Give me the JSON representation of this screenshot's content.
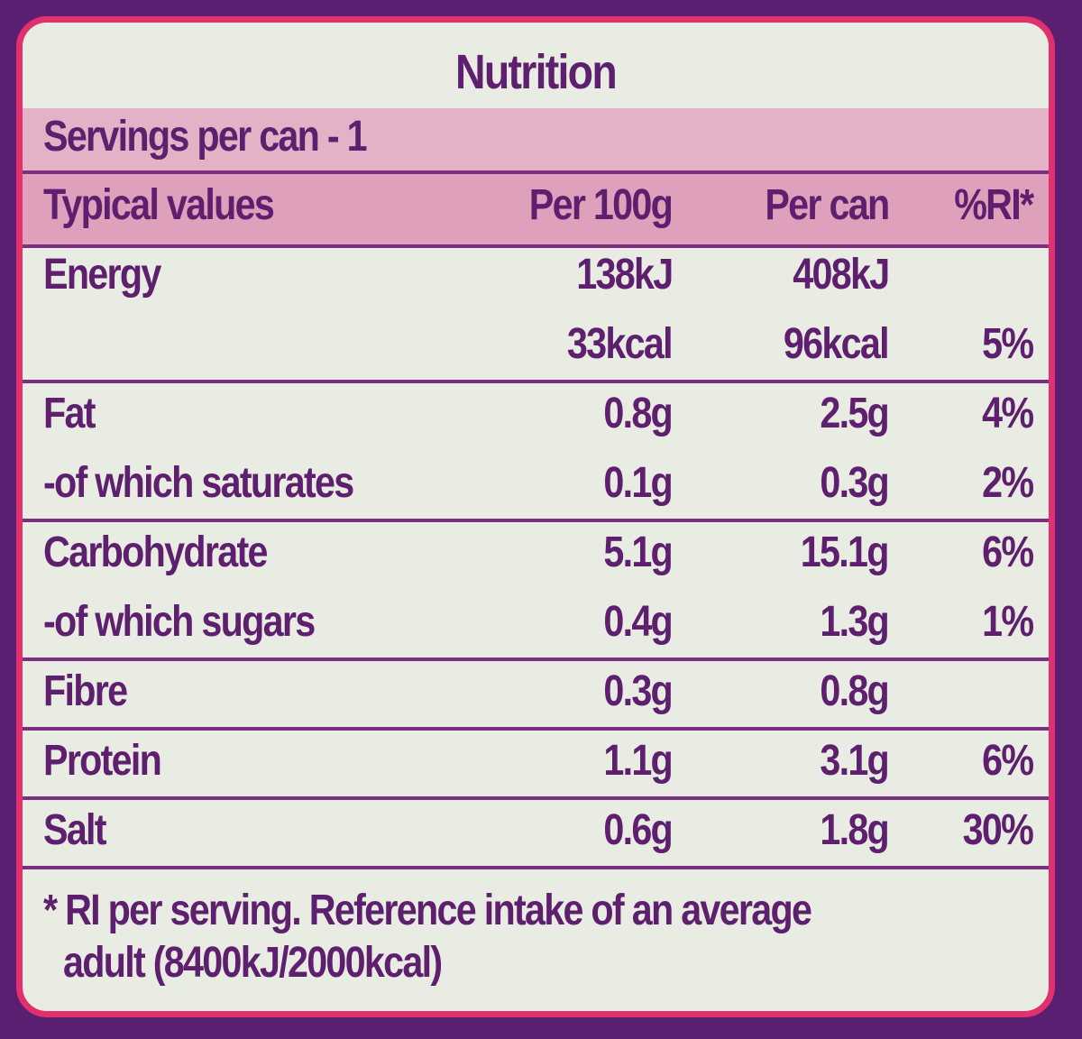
{
  "title": "Nutrition",
  "servings": "Servings per can - 1",
  "header": [
    "Typical values",
    "Per 100g",
    "Per can",
    "%RI*"
  ],
  "groups": [
    [
      [
        "Energy",
        "138kJ",
        "408kJ",
        null
      ],
      [
        null,
        "33kcal",
        "96kcal",
        "5%"
      ]
    ],
    [
      [
        "Fat",
        "0.8g",
        "2.5g",
        "4%"
      ],
      [
        "-of which saturates",
        "0.1g",
        "0.3g",
        "2%"
      ]
    ],
    [
      [
        "Carbohydrate",
        "5.1g",
        "15.1g",
        "6%"
      ],
      [
        "-of which sugars",
        "0.4g",
        "1.3g",
        "1%"
      ]
    ],
    [
      [
        "Fibre",
        "0.3g",
        "0.8g",
        null
      ]
    ],
    [
      [
        "Protein",
        "1.1g",
        "3.1g",
        "6%"
      ]
    ],
    [
      [
        "Salt",
        "0.6g",
        "1.8g",
        "30%"
      ]
    ]
  ],
  "footnote": [
    "* RI per serving. Reference intake of an average",
    "adult (8400kJ/2000kcal)"
  ]
}
